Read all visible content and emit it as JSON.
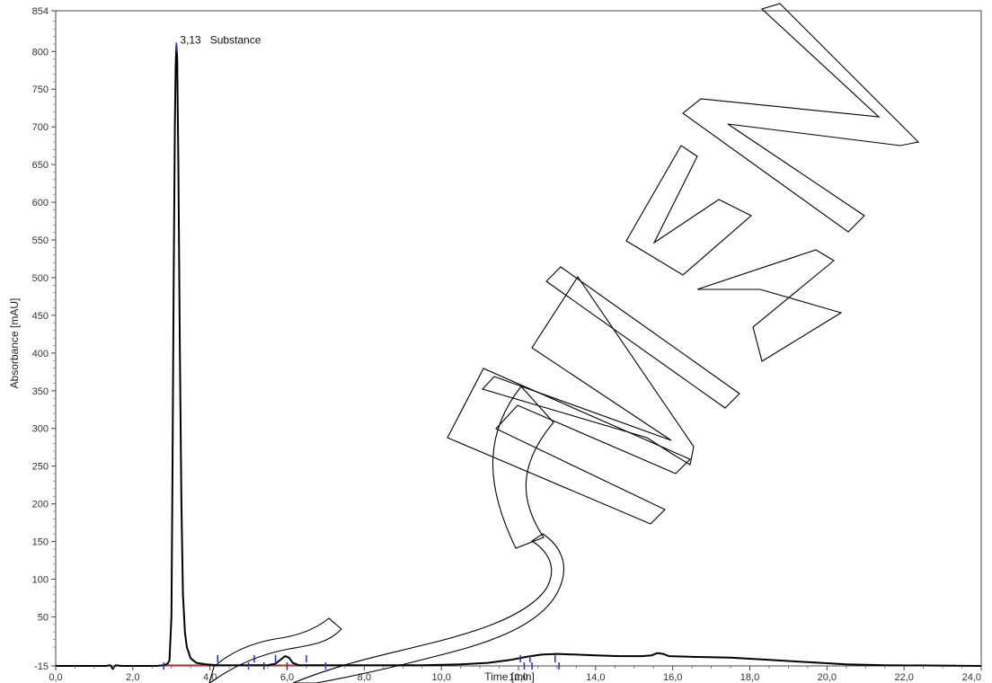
{
  "chart_data": {
    "type": "line",
    "title": "",
    "xlabel": "Time [min]",
    "ylabel": "Absorbance [mAU]",
    "xlim": [
      0,
      24
    ],
    "ylim": [
      -15,
      854
    ],
    "x_ticks": [
      "0,0",
      "2,0",
      "4,0",
      "6,0",
      "8,0",
      "10,0",
      "12,0",
      "14,0",
      "16,0",
      "18,0",
      "20,0",
      "22,0",
      "24,0"
    ],
    "y_ticks": [
      "-15",
      "50",
      "100",
      "150",
      "200",
      "250",
      "300",
      "350",
      "400",
      "450",
      "500",
      "550",
      "600",
      "650",
      "700",
      "750",
      "800",
      "854"
    ],
    "grid": false,
    "series": [
      {
        "color": "#000000",
        "points": [
          [
            0.0,
            -15
          ],
          [
            1.3,
            -15
          ],
          [
            1.42,
            -14
          ],
          [
            1.48,
            -19
          ],
          [
            1.55,
            -14
          ],
          [
            1.7,
            -15
          ],
          [
            2.6,
            -15
          ],
          [
            2.8,
            -14
          ],
          [
            2.9,
            -12
          ],
          [
            2.95,
            -8
          ],
          [
            3.0,
            50
          ],
          [
            3.03,
            250
          ],
          [
            3.06,
            500
          ],
          [
            3.09,
            700
          ],
          [
            3.11,
            780
          ],
          [
            3.13,
            808
          ],
          [
            3.15,
            790
          ],
          [
            3.18,
            650
          ],
          [
            3.22,
            400
          ],
          [
            3.26,
            200
          ],
          [
            3.3,
            80
          ],
          [
            3.35,
            30
          ],
          [
            3.4,
            10
          ],
          [
            3.5,
            -5
          ],
          [
            3.65,
            -11
          ],
          [
            3.9,
            -13
          ],
          [
            4.2,
            -14
          ],
          [
            5.5,
            -14
          ],
          [
            5.7,
            -12
          ],
          [
            5.85,
            -6
          ],
          [
            5.95,
            -2
          ],
          [
            6.05,
            -4
          ],
          [
            6.15,
            -11
          ],
          [
            6.3,
            -14
          ],
          [
            9.5,
            -14
          ],
          [
            10.5,
            -13
          ],
          [
            11.2,
            -11
          ],
          [
            11.8,
            -7
          ],
          [
            12.2,
            -3
          ],
          [
            12.6,
            0
          ],
          [
            13.0,
            1
          ],
          [
            13.5,
            0
          ],
          [
            14.0,
            -1
          ],
          [
            14.6,
            -2
          ],
          [
            15.2,
            -2
          ],
          [
            15.45,
            -1
          ],
          [
            15.6,
            2
          ],
          [
            15.75,
            1
          ],
          [
            15.9,
            -2
          ],
          [
            16.5,
            -3
          ],
          [
            17.5,
            -4
          ],
          [
            18.5,
            -7
          ],
          [
            19.5,
            -10
          ],
          [
            20.5,
            -13
          ],
          [
            21.5,
            -14
          ],
          [
            24.0,
            -15
          ]
        ]
      }
    ],
    "baselines": [
      {
        "x": [
          2.8,
          4.2
        ],
        "y": -15,
        "color": "#e03030"
      },
      {
        "x": [
          5.0,
          7.0
        ],
        "y": -15,
        "color": "#e03030"
      }
    ],
    "peak_markers": [
      3.13,
      2.8,
      4.2,
      5.0,
      5.15,
      5.4,
      5.7,
      6.0,
      6.5,
      7.0,
      12.05,
      12.15,
      12.3,
      12.35,
      12.95,
      13.05
    ],
    "marker_color": "#2b2bd6",
    "annotations": [
      {
        "x": 3.13,
        "y": 808,
        "label": "3,13",
        "name": "Substance"
      }
    ],
    "watermark": {
      "text": "SPECIMEN",
      "segments": [
        {
          "letter": "S",
          "points": [
            [
              233,
              1104
            ],
            [
              395,
              682
            ]
          ]
        },
        {
          "letter": "P",
          "points": [
            [
              326,
              762
            ],
            [
              373,
              733
            ]
          ]
        },
        {
          "letter": "E",
          "points": [
            [
              512,
              489
            ],
            [
              532,
              480
            ]
          ]
        }
      ]
    }
  }
}
